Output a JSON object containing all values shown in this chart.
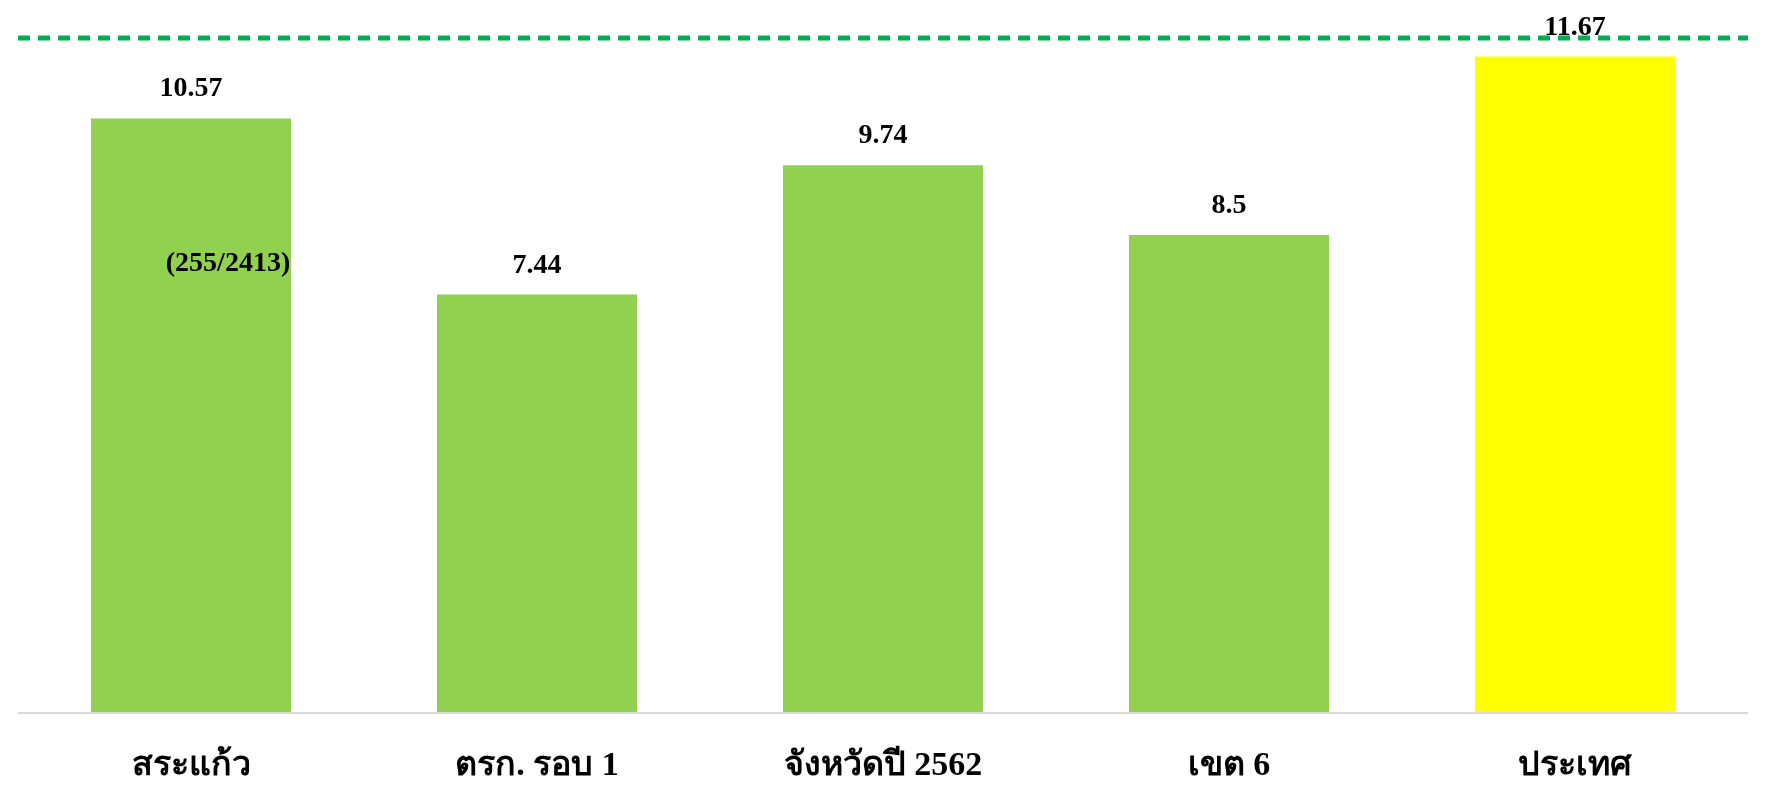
{
  "chart_data": {
    "type": "bar",
    "categories": [
      "สระแก้ว",
      "ตรก. รอบ 1",
      "จังหวัดปี 2562",
      "เขต 6",
      "ประเทศ"
    ],
    "values": [
      10.57,
      7.44,
      9.74,
      8.5,
      11.67
    ],
    "colors": [
      "#92d050",
      "#92d050",
      "#92d050",
      "#92d050",
      "#ffff00"
    ],
    "data_labels": true,
    "ref_lines": [
      {
        "axis": "y",
        "value": 12,
        "color": "#00b050",
        "line_style": "dashed"
      }
    ],
    "annotations": [
      "(255/2413)"
    ]
  }
}
